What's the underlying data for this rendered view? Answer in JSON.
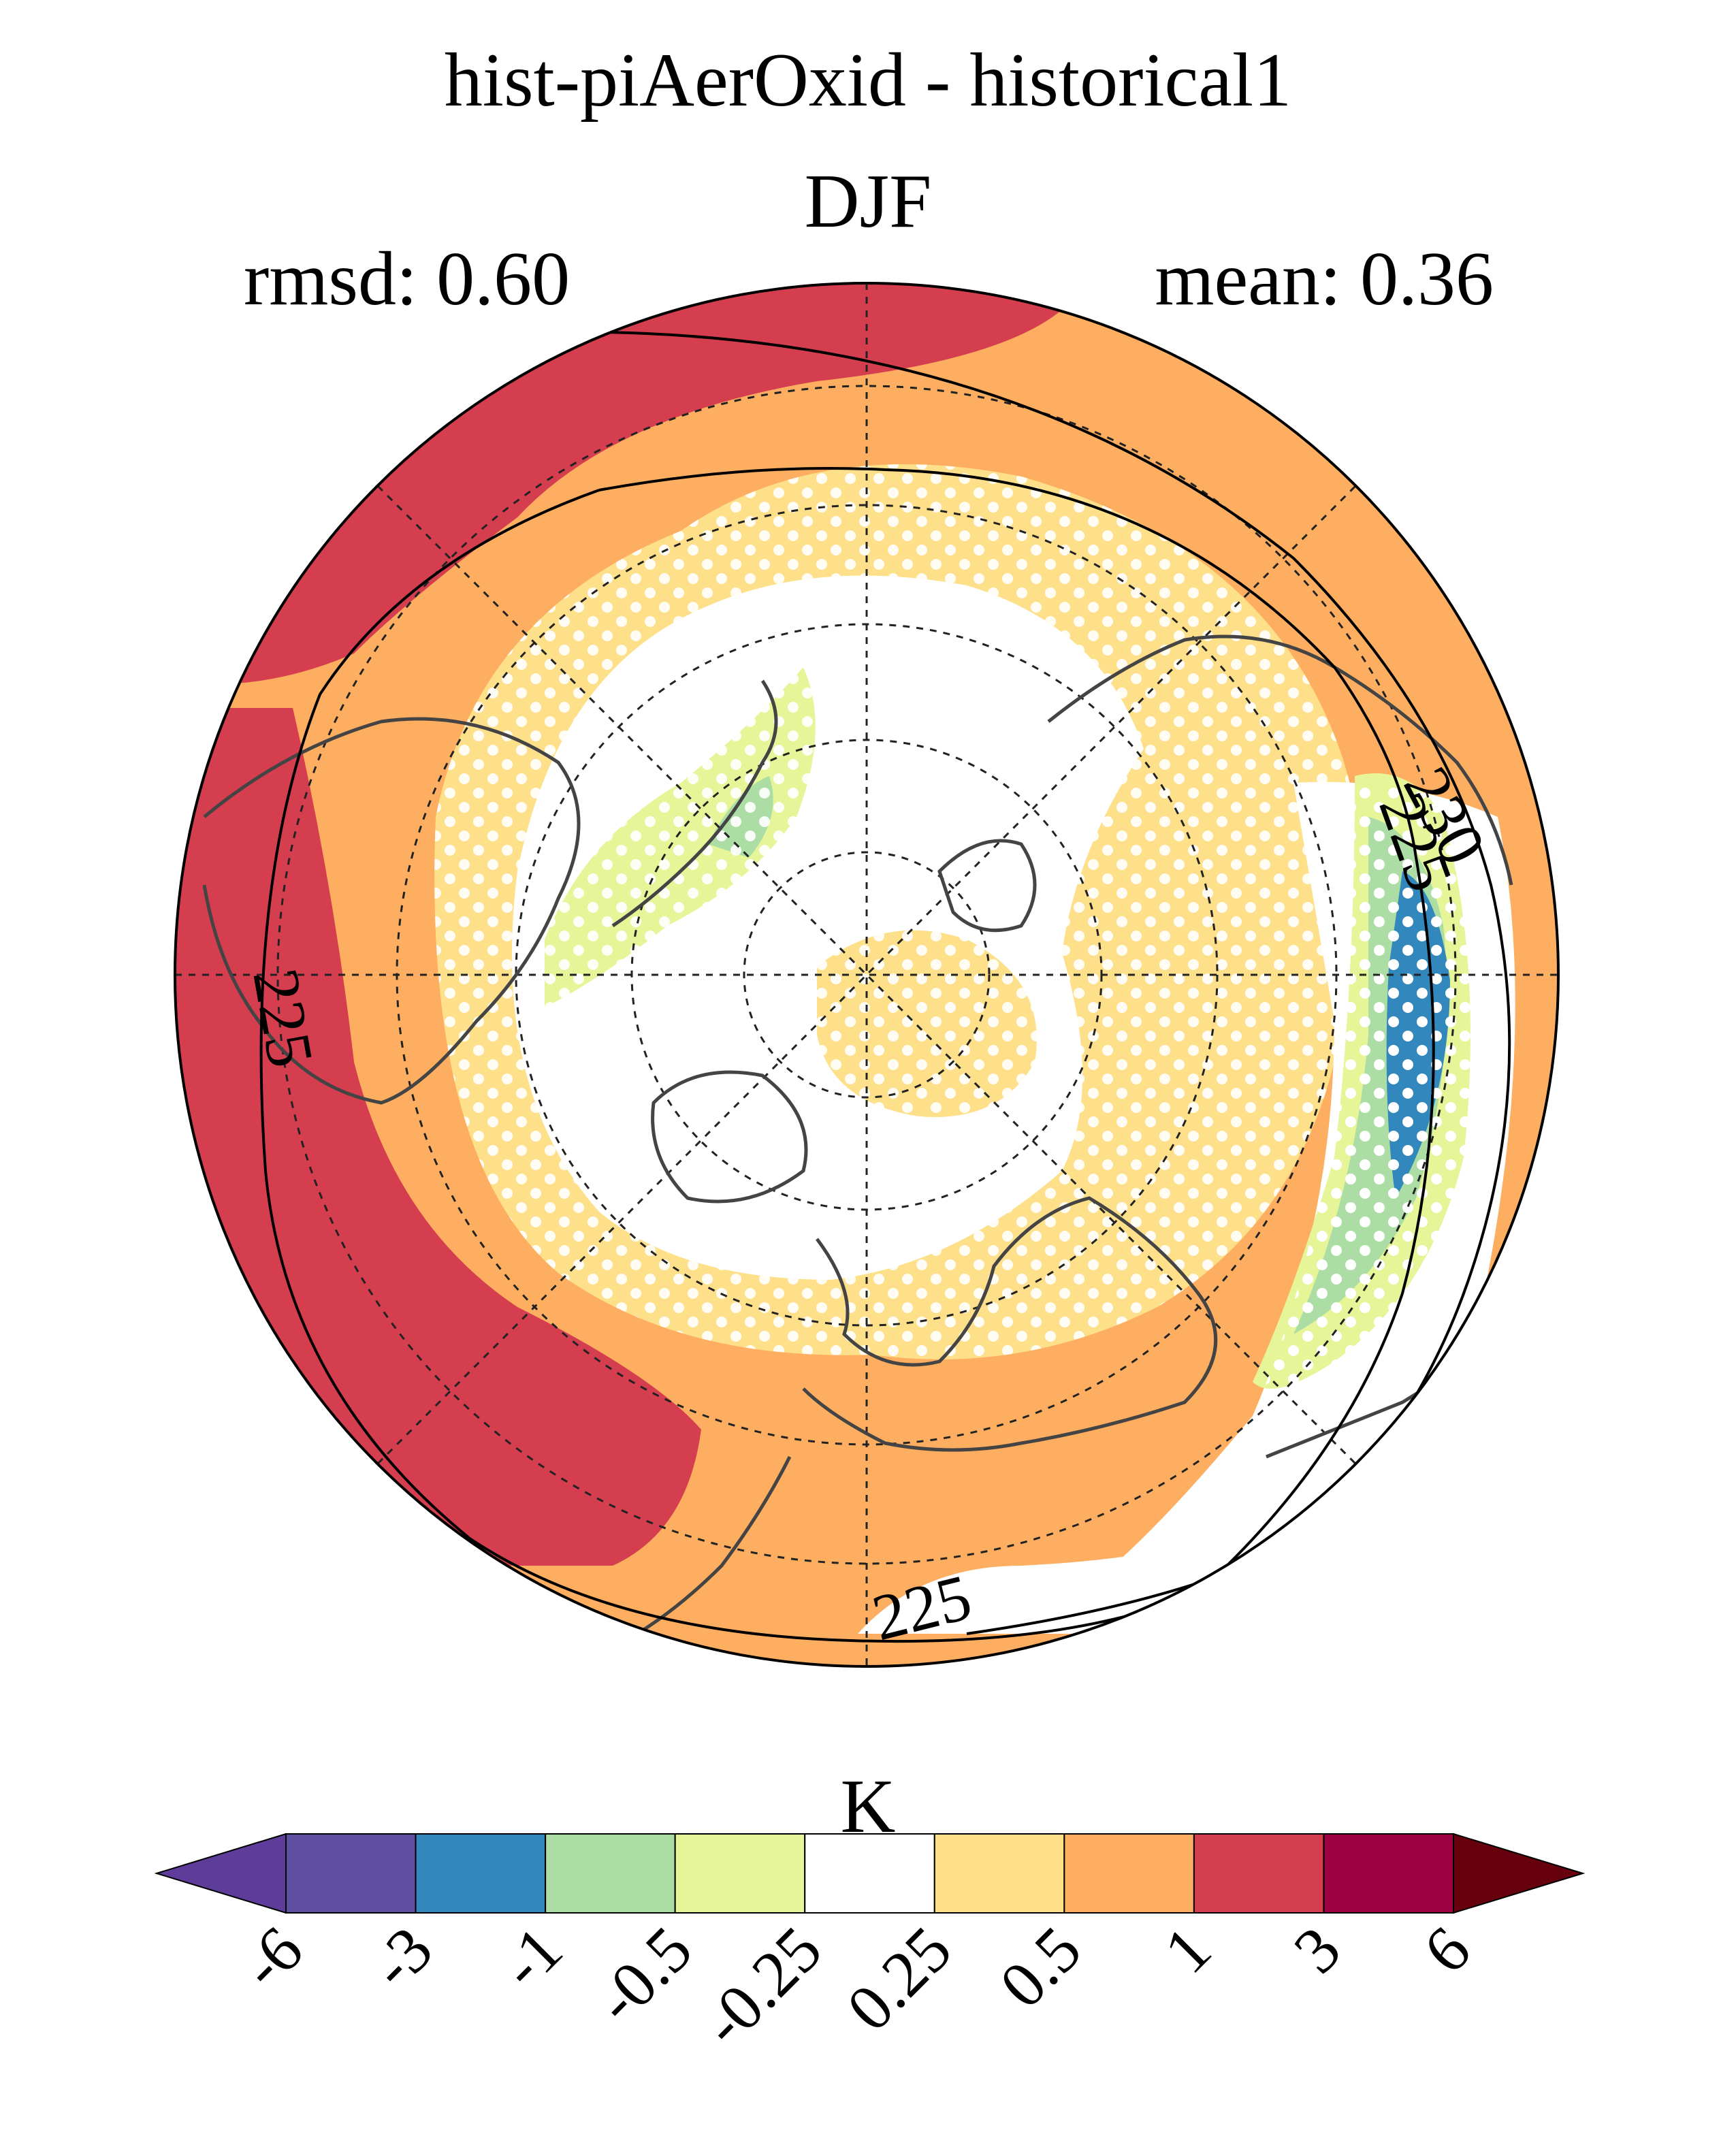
{
  "title": "hist-piAerOxid - historical1",
  "season": "DJF",
  "rmsd_label": "rmsd: 0.60",
  "mean_label": "mean: 0.36",
  "colorbar": {
    "unit": "K",
    "ticks": [
      "-6",
      "-3",
      "-1",
      "-0.5",
      "-0.25",
      "0.25",
      "0.5",
      "1",
      "3",
      "6"
    ],
    "colors": [
      "#5e3c99",
      "#5e4fa2",
      "#3288bd",
      "#abdda4",
      "#e6f598",
      "#ffffff",
      "#fee08b",
      "#fdae61",
      "#d53e4f",
      "#9e0142",
      "#67000d"
    ]
  },
  "contours": {
    "labels": [
      "230",
      "225",
      "225",
      "225"
    ]
  },
  "map": {
    "projection": "north polar stereographic",
    "hatching": "white dots mark areas not significant",
    "region_colors": {
      "high": "#d53e4f",
      "mid": "#fdae61",
      "low": "#fee08b",
      "neutral": "#ffffff",
      "neg_small": "#e6f598",
      "neg_mid": "#abdda4",
      "neg_large": "#3288bd"
    }
  }
}
